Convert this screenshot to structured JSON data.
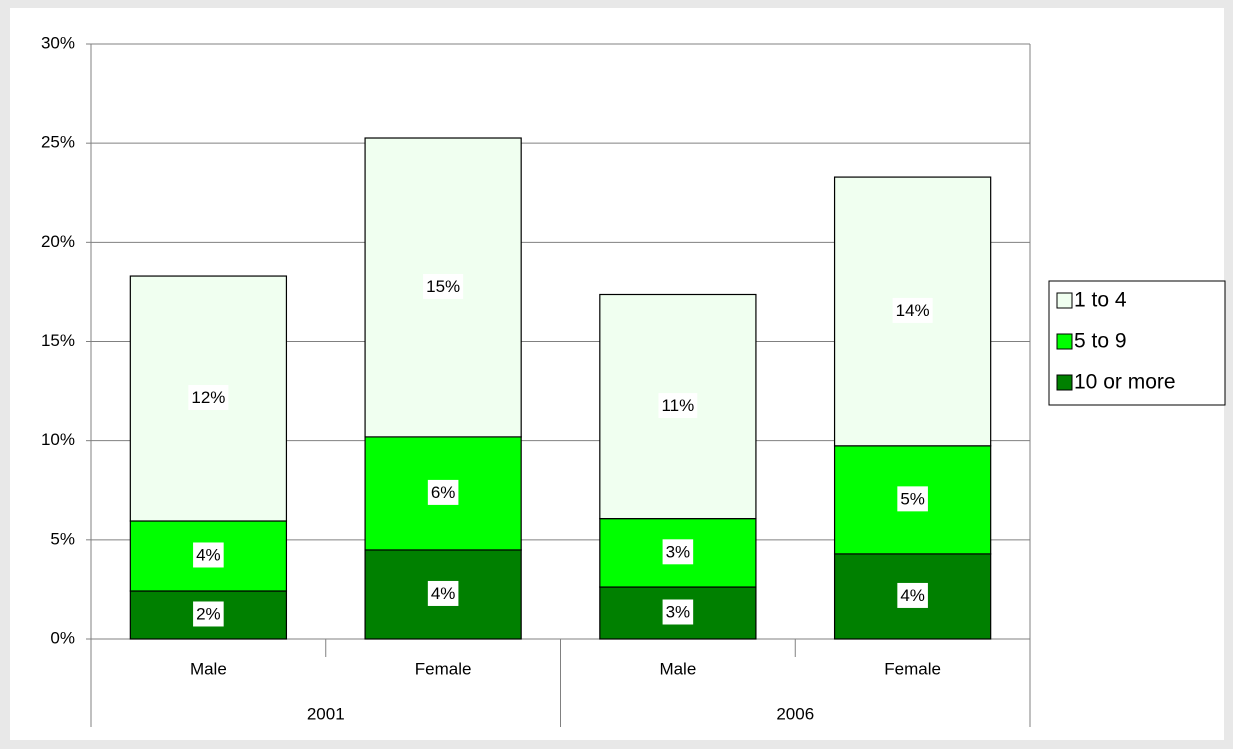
{
  "chart_data": {
    "type": "stacked_bar",
    "groups": [
      {
        "name": "2001",
        "categories": [
          "Male",
          "Female"
        ]
      },
      {
        "name": "2006",
        "categories": [
          "Male",
          "Female"
        ]
      }
    ],
    "series": [
      {
        "name": "10 or more",
        "color": "#008000",
        "values": [
          2.42,
          4.49,
          2.62,
          4.29
        ],
        "value_labels": [
          "2%",
          "4%",
          "3%",
          "4%"
        ]
      },
      {
        "name": "5 to 9",
        "color": "#00ff00",
        "values": [
          3.53,
          5.7,
          3.45,
          5.45
        ],
        "value_labels": [
          "4%",
          "6%",
          "3%",
          "5%"
        ]
      },
      {
        "name": "1 to 4",
        "color": "#f0fff0",
        "values": [
          12.35,
          15.07,
          11.3,
          13.55
        ],
        "value_labels": [
          "12%",
          "15%",
          "11%",
          "14%"
        ]
      }
    ],
    "ylim": [
      0,
      30
    ],
    "yticks": [
      {
        "value": 0,
        "label": "0%"
      },
      {
        "value": 5,
        "label": "5%"
      },
      {
        "value": 10,
        "label": "10%"
      },
      {
        "value": 15,
        "label": "15%"
      },
      {
        "value": 20,
        "label": "20%"
      },
      {
        "value": 25,
        "label": "25%"
      },
      {
        "value": 30,
        "label": "30%"
      }
    ],
    "grid": true,
    "legend": "right"
  }
}
